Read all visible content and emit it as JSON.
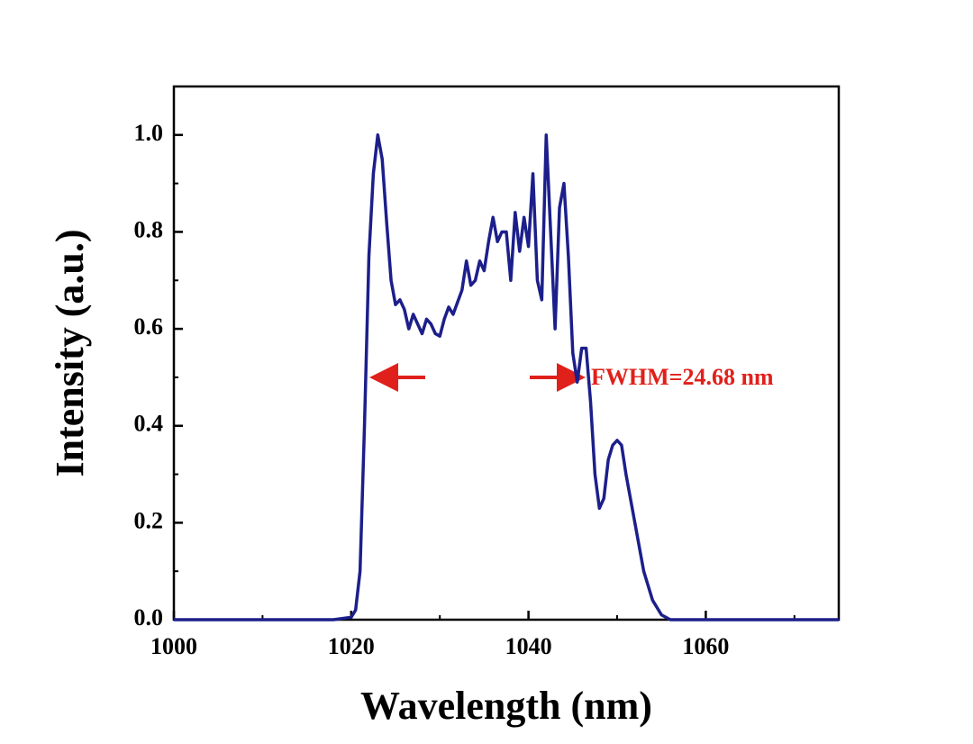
{
  "chart_data": {
    "type": "line",
    "x_label": "Wavelength (nm)",
    "y_label": "Intensity (a.u.)",
    "annotation": "FWHM=24.68 nm",
    "xlim": [
      1000,
      1075
    ],
    "ylim": [
      0,
      1.1
    ],
    "xticks": [
      1000,
      1020,
      1040,
      1060
    ],
    "xminorticks": [
      1010,
      1030,
      1050,
      1070
    ],
    "yticks": [
      {
        "value": 0,
        "label": "0.0"
      },
      0.2,
      0.4,
      0.6,
      0.8,
      {
        "value": 1,
        "label": "1.0"
      }
    ],
    "yminorticks": [
      0.1,
      0.3,
      0.5,
      0.7,
      0.9
    ],
    "series": [
      {
        "color": "#1c1f8a",
        "x": [
          1000,
          1018,
          1020,
          1020.5,
          1021,
          1021.5,
          1022,
          1022.5,
          1023,
          1023.5,
          1024,
          1024.5,
          1025,
          1025.5,
          1026,
          1026.5,
          1027,
          1027.5,
          1028,
          1028.5,
          1029,
          1029.5,
          1030,
          1030.5,
          1031,
          1031.5,
          1032,
          1032.5,
          1033,
          1033.5,
          1034,
          1034.5,
          1035,
          1035.5,
          1036,
          1036.5,
          1037,
          1037.5,
          1038,
          1038.5,
          1039,
          1039.5,
          1040,
          1040.5,
          1041,
          1041.5,
          1042,
          1042.5,
          1043,
          1043.5,
          1044,
          1044.5,
          1045,
          1045.5,
          1046,
          1046.5,
          1047,
          1047.5,
          1048,
          1048.5,
          1049,
          1049.5,
          1050,
          1050.5,
          1051,
          1052,
          1053,
          1054,
          1055,
          1056,
          1075
        ],
        "values": [
          0,
          0,
          0.005,
          0.02,
          0.1,
          0.4,
          0.75,
          0.92,
          1.0,
          0.95,
          0.82,
          0.7,
          0.65,
          0.66,
          0.64,
          0.6,
          0.63,
          0.61,
          0.59,
          0.62,
          0.61,
          0.59,
          0.585,
          0.62,
          0.645,
          0.63,
          0.655,
          0.68,
          0.74,
          0.69,
          0.7,
          0.74,
          0.72,
          0.78,
          0.83,
          0.78,
          0.8,
          0.8,
          0.7,
          0.84,
          0.76,
          0.83,
          0.77,
          0.92,
          0.7,
          0.66,
          1.0,
          0.8,
          0.6,
          0.85,
          0.9,
          0.75,
          0.55,
          0.49,
          0.56,
          0.56,
          0.45,
          0.3,
          0.23,
          0.25,
          0.33,
          0.36,
          0.37,
          0.36,
          0.3,
          0.2,
          0.1,
          0.04,
          0.01,
          0,
          0
        ]
      }
    ]
  }
}
